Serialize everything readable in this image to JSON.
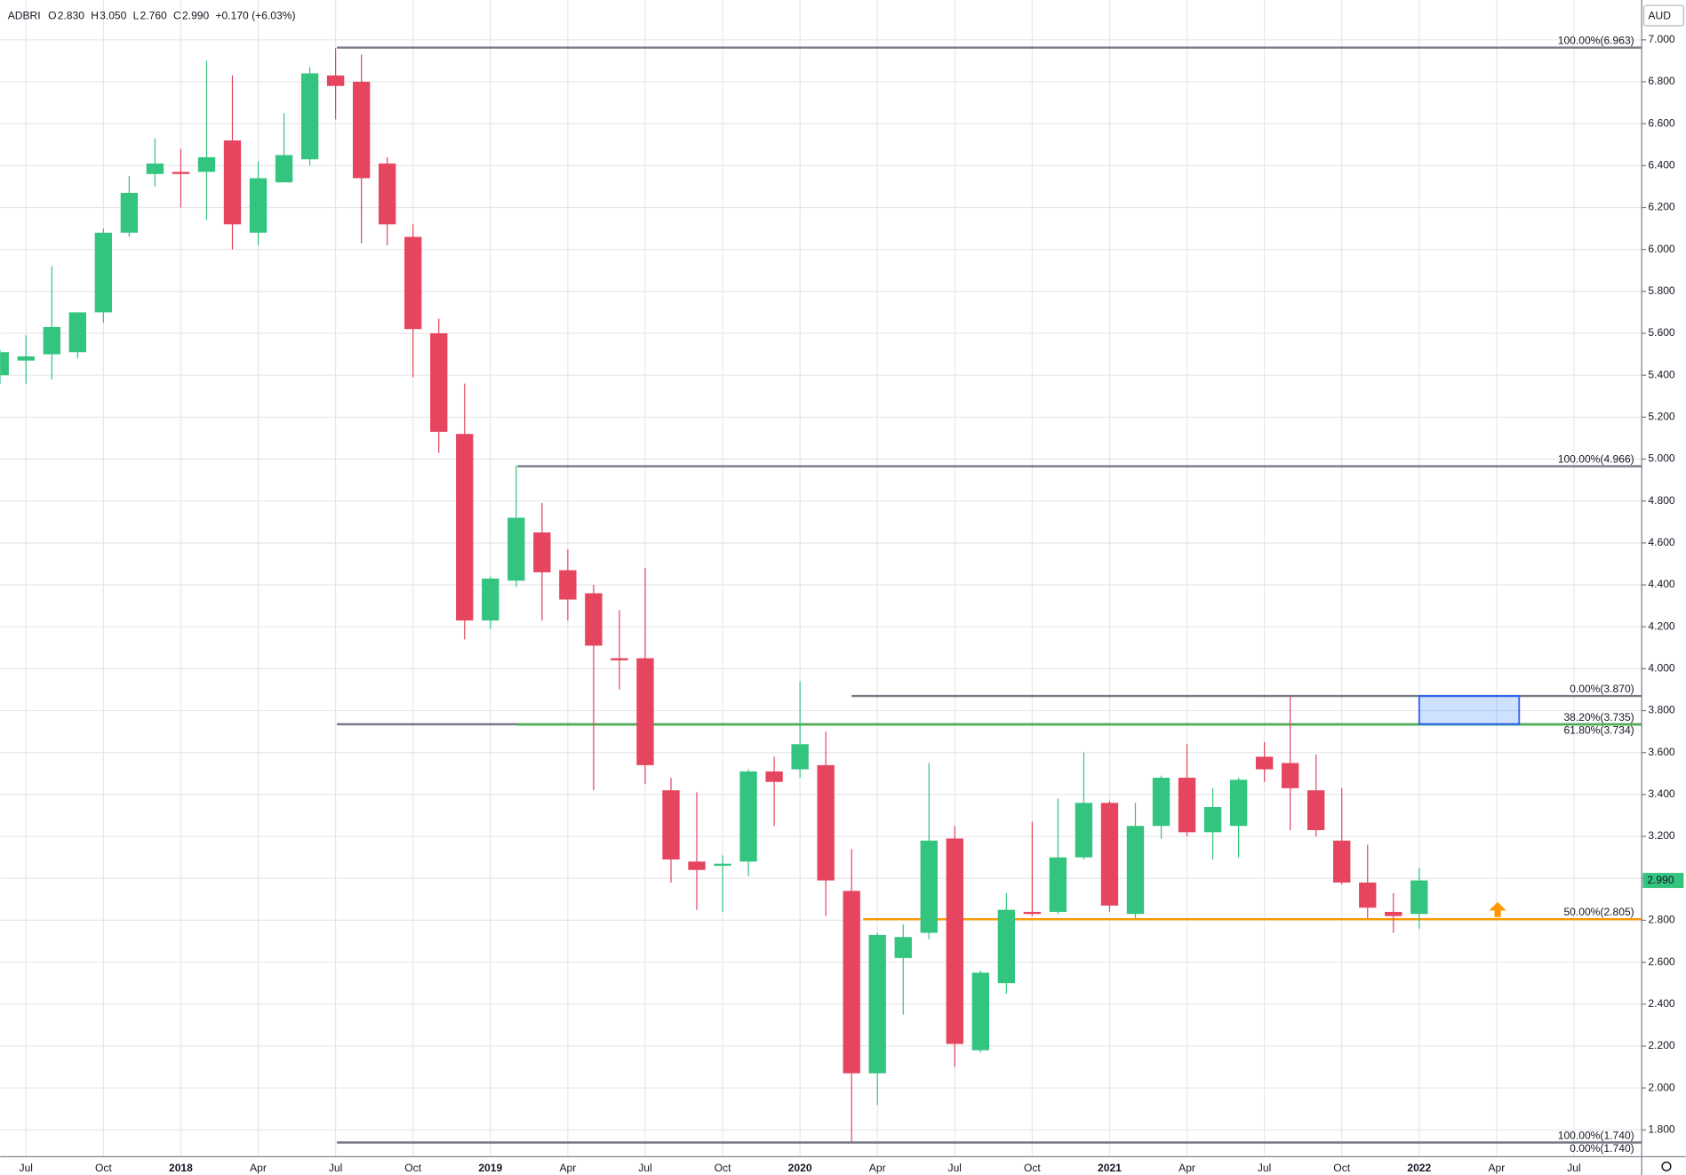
{
  "chart_data": {
    "type": "candlestick",
    "header": {
      "symbol": "ADBRI",
      "fields": [
        {
          "key": "O",
          "value": "2.830"
        },
        {
          "key": "H",
          "value": "3.050"
        },
        {
          "key": "L",
          "value": "2.760"
        },
        {
          "key": "C",
          "value": "2.990"
        }
      ],
      "change": "+0.170 (+6.03%)"
    },
    "currency": "AUD",
    "up_color": "#33c47f",
    "down_color": "#e5455f",
    "categories": [
      null,
      "Jul",
      null,
      null,
      "Oct",
      null,
      null,
      "2018",
      null,
      null,
      "Apr",
      null,
      null,
      "Jul",
      null,
      null,
      "Oct",
      null,
      null,
      "2019",
      null,
      null,
      "Apr",
      null,
      null,
      "Jul",
      null,
      null,
      "Oct",
      null,
      null,
      "2020",
      null,
      null,
      "Apr",
      null,
      null,
      "Jul",
      null,
      null,
      "Oct",
      null,
      null,
      "2021",
      null,
      null,
      "Apr",
      null,
      null,
      "Jul",
      null,
      null,
      "Oct",
      null,
      null,
      "2022",
      null,
      null,
      "Apr",
      null,
      null,
      "Jul"
    ],
    "open": [
      5.4,
      5.47,
      5.5,
      5.51,
      5.7,
      6.08,
      6.36,
      6.37,
      6.37,
      6.52,
      6.08,
      6.32,
      6.43,
      6.83,
      6.8,
      6.41,
      6.06,
      5.6,
      5.12,
      4.23,
      4.42,
      4.65,
      4.47,
      4.36,
      4.05,
      4.05,
      3.42,
      3.08,
      3.06,
      3.08,
      3.51,
      3.52,
      3.54,
      2.94,
      2.07,
      2.62,
      2.74,
      3.19,
      2.18,
      2.5,
      2.84,
      2.84,
      3.1,
      3.36,
      2.83,
      3.25,
      3.48,
      3.22,
      3.25,
      3.58,
      3.55,
      3.42,
      3.18,
      2.98,
      2.84,
      2.83,
      null,
      null,
      null,
      null,
      null,
      null
    ],
    "high": [
      5.52,
      5.59,
      5.92,
      5.7,
      6.1,
      6.35,
      6.53,
      6.48,
      6.9,
      6.83,
      6.42,
      6.65,
      6.87,
      6.96,
      6.93,
      6.44,
      6.12,
      5.67,
      5.36,
      4.44,
      4.97,
      4.79,
      4.57,
      4.4,
      4.28,
      4.48,
      3.48,
      3.41,
      3.11,
      3.52,
      3.58,
      3.94,
      3.7,
      3.14,
      2.74,
      2.78,
      3.55,
      3.25,
      2.56,
      2.93,
      3.27,
      3.38,
      3.6,
      3.37,
      3.36,
      3.49,
      3.64,
      3.43,
      3.48,
      3.65,
      3.87,
      3.59,
      3.43,
      3.16,
      2.93,
      3.05,
      null,
      null,
      null,
      null,
      null,
      null
    ],
    "low": [
      5.36,
      5.36,
      5.38,
      5.48,
      5.65,
      6.06,
      6.3,
      6.2,
      6.14,
      6.0,
      6.02,
      6.32,
      6.4,
      6.62,
      6.03,
      6.02,
      5.39,
      5.03,
      4.14,
      4.19,
      4.39,
      4.23,
      4.23,
      3.42,
      3.9,
      3.45,
      2.98,
      2.85,
      2.84,
      3.01,
      3.25,
      3.48,
      2.82,
      1.74,
      1.92,
      2.35,
      2.71,
      2.1,
      2.17,
      2.45,
      2.82,
      2.83,
      3.09,
      2.84,
      2.81,
      3.19,
      3.2,
      3.09,
      3.1,
      3.46,
      3.23,
      3.2,
      2.97,
      2.81,
      2.74,
      2.76,
      null,
      null,
      null,
      null,
      null,
      null
    ],
    "close": [
      5.51,
      5.49,
      5.63,
      5.7,
      6.08,
      6.27,
      6.41,
      6.36,
      6.44,
      6.12,
      6.34,
      6.45,
      6.84,
      6.78,
      6.34,
      6.12,
      5.62,
      5.13,
      4.23,
      4.43,
      4.72,
      4.46,
      4.33,
      4.11,
      4.04,
      3.54,
      3.09,
      3.04,
      3.07,
      3.51,
      3.46,
      3.64,
      2.99,
      2.07,
      2.73,
      2.72,
      3.18,
      2.21,
      2.55,
      2.85,
      2.83,
      3.1,
      3.36,
      2.87,
      3.25,
      3.48,
      3.22,
      3.34,
      3.47,
      3.52,
      3.43,
      3.23,
      2.98,
      2.86,
      2.82,
      2.99,
      null,
      null,
      null,
      null,
      null,
      null
    ],
    "ylim": [
      1.672,
      7.19
    ],
    "yticks": [
      {
        "value": 1.8,
        "label": "1.800"
      },
      {
        "value": 2.0,
        "label": "2.000"
      },
      {
        "value": 2.2,
        "label": "2.200"
      },
      {
        "value": 2.4,
        "label": "2.400"
      },
      {
        "value": 2.6,
        "label": "2.600"
      },
      {
        "value": 2.8,
        "label": "2.800"
      },
      {
        "value": 3.0,
        "label": "3.000"
      },
      {
        "value": 3.2,
        "label": "3.200"
      },
      {
        "value": 3.4,
        "label": "3.400"
      },
      {
        "value": 3.6,
        "label": "3.600"
      },
      {
        "value": 3.8,
        "label": "3.800"
      },
      {
        "value": 4.0,
        "label": "4.000"
      },
      {
        "value": 4.2,
        "label": "4.200"
      },
      {
        "value": 4.4,
        "label": "4.400"
      },
      {
        "value": 4.6,
        "label": "4.600"
      },
      {
        "value": 4.8,
        "label": "4.800"
      },
      {
        "value": 5.0,
        "label": "5.000"
      },
      {
        "value": 5.2,
        "label": "5.200"
      },
      {
        "value": 5.4,
        "label": "5.400"
      },
      {
        "value": 5.6,
        "label": "5.600"
      },
      {
        "value": 5.8,
        "label": "5.800"
      },
      {
        "value": 6.0,
        "label": "6.000"
      },
      {
        "value": 6.2,
        "label": "6.200"
      },
      {
        "value": 6.4,
        "label": "6.400"
      },
      {
        "value": 6.6,
        "label": "6.600"
      },
      {
        "value": 6.8,
        "label": "6.800"
      },
      {
        "value": 7.0,
        "label": "7.000"
      }
    ],
    "grid": true,
    "last_price": {
      "value": 2.99,
      "label": "2.990"
    },
    "levels": [
      {
        "label": "100.00%(6.963)",
        "value": 6.963,
        "color": "#787b86"
      },
      {
        "label": "100.00%(4.966)",
        "value": 4.966,
        "color": "#787b86"
      },
      {
        "label": "0.00%(3.870)",
        "value": 3.87,
        "color": "#787b86"
      },
      {
        "label": "38.20%(3.735)",
        "value": 3.735,
        "color": "#787b86"
      },
      {
        "label": "61.80%(3.734)",
        "value": 3.734,
        "color": "#4caf50"
      },
      {
        "label": "50.00%(2.805)",
        "value": 2.805,
        "color": "#ff9800"
      },
      {
        "label": "100.00%(1.740)",
        "value": 1.74,
        "color": "#787b86"
      },
      {
        "label": "0.00%(1.740)",
        "value": 1.74,
        "color": "#787b86"
      }
    ]
  }
}
